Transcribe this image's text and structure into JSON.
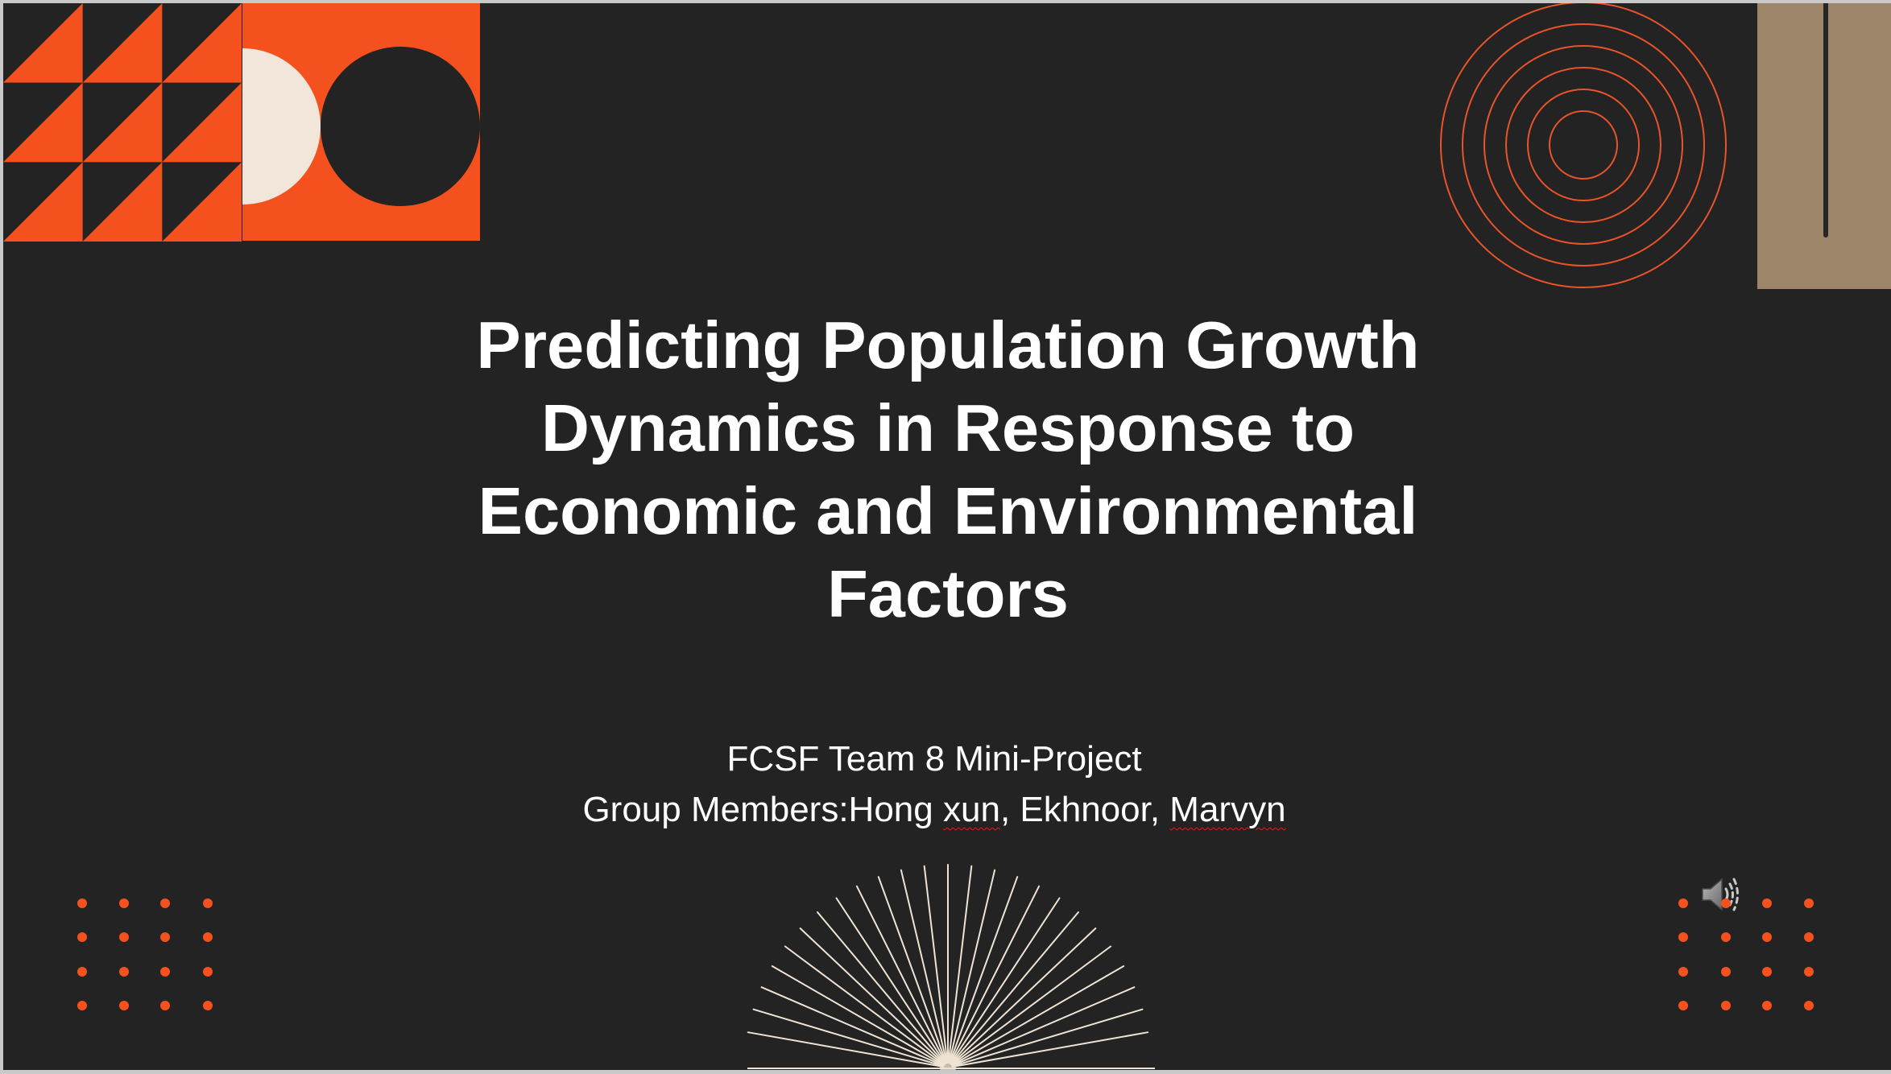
{
  "slide": {
    "title_lines": [
      "Predicting Population Growth",
      "Dynamics in Response to",
      "Economic and Environmental",
      "Factors"
    ],
    "subtitle": "FCSF Team 8 Mini-Project",
    "members": [
      {
        "text": "Group Members:Hong ",
        "spellcheck_flagged": false
      },
      {
        "text": "xun",
        "spellcheck_flagged": true
      },
      {
        "text": ", Ekhnoor, ",
        "spellcheck_flagged": false
      },
      {
        "text": "Marvyn",
        "spellcheck_flagged": true
      }
    ]
  },
  "audio": {
    "icon": "speaker-icon"
  },
  "colors": {
    "background": "#232323",
    "accent_orange": "#F4511E",
    "cream": "#F1E6D9",
    "tan": "#9C8568",
    "text": "#FFFFFF",
    "spellcheck_underline": "#E0201B"
  }
}
